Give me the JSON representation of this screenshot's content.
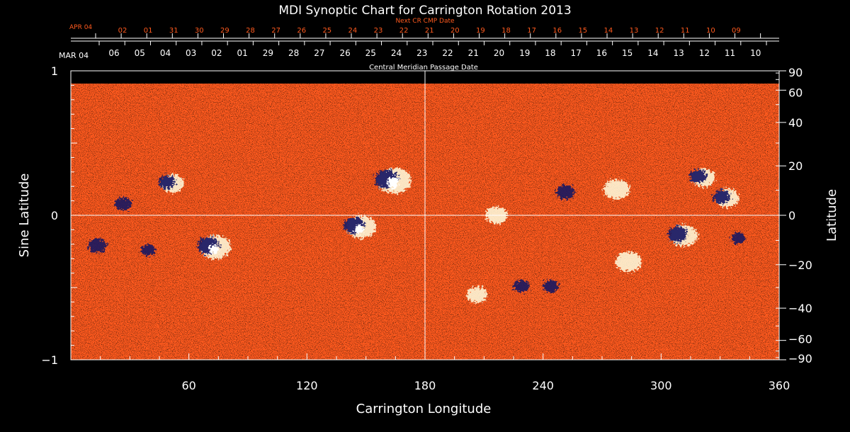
{
  "chart_data": {
    "type": "heatmap",
    "title": "MDI Synoptic Chart for Carrington Rotation 2013",
    "xlabel": "Carrington Longitude",
    "ylabel_left": "Sine Latitude",
    "ylabel_right": "Latitude",
    "xlim": [
      0,
      360
    ],
    "ylim": [
      -1,
      1
    ],
    "x_ticks": [
      "60",
      "120",
      "180",
      "240",
      "300",
      "360"
    ],
    "y_left_ticks": [
      "1",
      "0",
      "−1"
    ],
    "y_right_ticks": [
      "90",
      "60",
      "40",
      "20",
      "0",
      "−20",
      "−40",
      "−60",
      "−90"
    ],
    "cmp_axis": {
      "label": "Central Meridian Passage Date",
      "start_label": "MAR 04",
      "dates": [
        "06",
        "05",
        "04",
        "03",
        "02",
        "01",
        "29",
        "28",
        "27",
        "26",
        "25",
        "24",
        "23",
        "22",
        "21",
        "20",
        "19",
        "18",
        "17",
        "16",
        "15",
        "14",
        "13",
        "12",
        "11",
        "10"
      ]
    },
    "next_cmp_axis": {
      "label": "Next CR CMP Date",
      "start_label": "APR 04",
      "dates": [
        "02",
        "01",
        "31",
        "30",
        "29",
        "28",
        "27",
        "26",
        "25",
        "24",
        "23",
        "22",
        "21",
        "20",
        "19",
        "18",
        "17",
        "16",
        "15",
        "14",
        "13",
        "12",
        "11",
        "10",
        "09"
      ]
    },
    "active_regions": [
      {
        "lon": 163,
        "sinlat": 0.24,
        "polarity": "mixed",
        "strength": 1.0
      },
      {
        "lon": 146,
        "sinlat": -0.08,
        "polarity": "mixed",
        "strength": 0.8
      },
      {
        "lon": 72,
        "sinlat": -0.22,
        "polarity": "mixed",
        "strength": 0.85
      },
      {
        "lon": 15,
        "sinlat": -0.22,
        "polarity": "negative",
        "strength": 0.6
      },
      {
        "lon": 28,
        "sinlat": 0.07,
        "polarity": "negative",
        "strength": 0.5
      },
      {
        "lon": 50,
        "sinlat": 0.22,
        "polarity": "mixed",
        "strength": 0.5
      },
      {
        "lon": 253,
        "sinlat": 0.15,
        "polarity": "negative",
        "strength": 0.6
      },
      {
        "lon": 276,
        "sinlat": 0.18,
        "polarity": "positive",
        "strength": 0.6
      },
      {
        "lon": 282,
        "sinlat": -0.32,
        "polarity": "positive",
        "strength": 0.6
      },
      {
        "lon": 310,
        "sinlat": -0.14,
        "polarity": "mixed",
        "strength": 0.7
      },
      {
        "lon": 332,
        "sinlat": 0.12,
        "polarity": "mixed",
        "strength": 0.5
      },
      {
        "lon": 320,
        "sinlat": 0.26,
        "polarity": "mixed",
        "strength": 0.5
      },
      {
        "lon": 215,
        "sinlat": 0.0,
        "polarity": "positive",
        "strength": 0.4
      },
      {
        "lon": 230,
        "sinlat": -0.5,
        "polarity": "negative",
        "strength": 0.4
      },
      {
        "lon": 205,
        "sinlat": -0.55,
        "polarity": "positive",
        "strength": 0.3
      },
      {
        "lon": 245,
        "sinlat": -0.5,
        "polarity": "negative",
        "strength": 0.4
      },
      {
        "lon": 340,
        "sinlat": -0.17,
        "polarity": "negative",
        "strength": 0.3
      },
      {
        "lon": 40,
        "sinlat": -0.25,
        "polarity": "negative",
        "strength": 0.3
      }
    ],
    "colormap": {
      "background": "#000000",
      "negative": "#141460",
      "neutral": "#ff5a1e",
      "positive": "#ffffe0"
    },
    "grid": true
  }
}
